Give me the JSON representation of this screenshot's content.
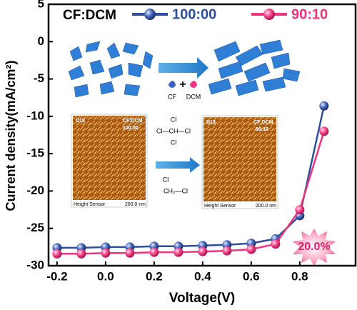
{
  "chart_data": {
    "type": "line",
    "legend_title": "CF:DCM",
    "x_label": "Voltage(V)",
    "y_label": "Current density(mA/cm²)",
    "x": [
      -0.2,
      -0.1,
      0.0,
      0.1,
      0.2,
      0.3,
      0.4,
      0.5,
      0.6,
      0.7,
      0.8,
      0.9
    ],
    "series": [
      {
        "name": "100:00",
        "color": "#2f4f9e",
        "values": [
          -27.6,
          -27.6,
          -27.5,
          -27.5,
          -27.4,
          -27.4,
          -27.3,
          -27.2,
          -27.0,
          -26.4,
          -23.3,
          -8.6
        ]
      },
      {
        "name": "90:10",
        "color": "#f0337f",
        "values": [
          -28.4,
          -28.4,
          -28.3,
          -28.3,
          -28.2,
          -28.2,
          -28.1,
          -28.0,
          -27.8,
          -27.1,
          -22.5,
          -12
        ]
      }
    ],
    "xlim": [
      -0.235,
      1.03
    ],
    "ylim": [
      -30,
      5
    ],
    "xticks": [
      -0.2,
      {
        "value": 0,
        "label": "0.0"
      },
      0.2,
      0.4,
      0.6,
      0.8
    ],
    "yticks": [
      5,
      0,
      -5,
      -10,
      -15,
      -20,
      -25,
      -30
    ],
    "annotations": [
      "20.0%"
    ],
    "inset": {
      "solvents": [
        "CF",
        "DCM"
      ],
      "afm": [
        {
          "sample": "D18",
          "solvent": "CF:DCM",
          "ratio": "100:00",
          "sensor": "Height Sensor",
          "scale": "200.0 nm"
        },
        {
          "sample": "D18",
          "solvent": "CF:DCM",
          "ratio": "90:10",
          "sensor": "Height Sensor",
          "scale": "200.0 nm"
        }
      ],
      "chcl3": [
        "Cl",
        "Cl—CH—Cl",
        "Cl"
      ],
      "ch2cl2": [
        "Cl",
        "CH₂—Cl"
      ]
    }
  }
}
